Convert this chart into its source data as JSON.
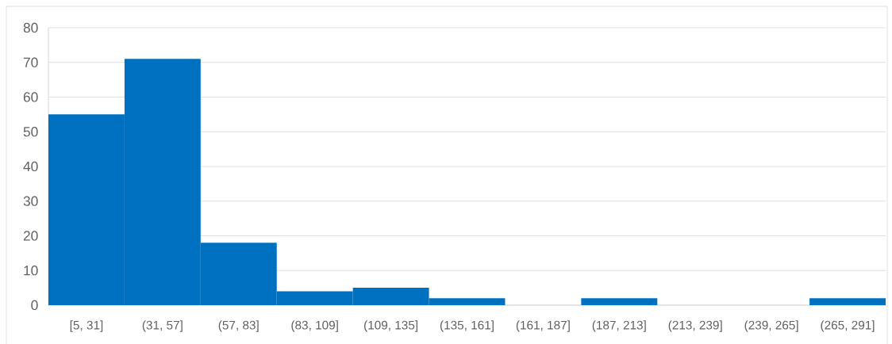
{
  "chart_data": {
    "type": "bar",
    "categories": [
      "[5, 31]",
      "(31, 57]",
      "(57, 83]",
      "(83, 109]",
      "(109, 135]",
      "(135, 161]",
      "(161, 187]",
      "(187, 213]",
      "(213, 239]",
      "(239, 265]",
      "(265, 291]"
    ],
    "values": [
      55,
      71,
      18,
      4,
      5,
      2,
      0,
      2,
      0,
      0,
      2
    ],
    "color": "#0070c0",
    "ylim": [
      0,
      80
    ],
    "yticks": [
      0,
      10,
      20,
      30,
      40,
      50,
      60,
      70,
      80
    ],
    "grid": "y"
  }
}
